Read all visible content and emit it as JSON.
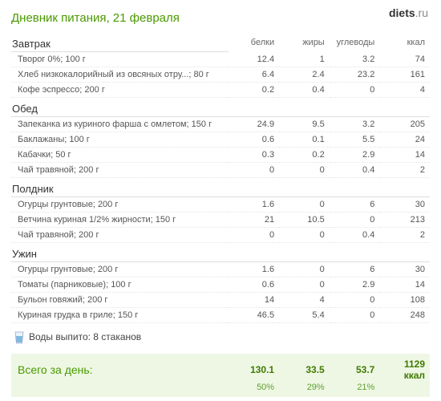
{
  "brand": {
    "bold": "diets",
    "suffix": ".ru"
  },
  "title": "Дневник питания, 21 февраля",
  "columns": {
    "protein": "белки",
    "fat": "жиры",
    "carbs": "углеводы",
    "kcal": "ккал"
  },
  "meals": [
    {
      "name": "Завтрак",
      "items": [
        {
          "name": "Творог 0%; 100 г",
          "p": "12.4",
          "f": "1",
          "c": "3.2",
          "k": "74"
        },
        {
          "name": "Хлеб низкокалорийный из овсяных отру...; 80 г",
          "p": "6.4",
          "f": "2.4",
          "c": "23.2",
          "k": "161"
        },
        {
          "name": "Кофе эспрессо; 200 г",
          "p": "0.2",
          "f": "0.4",
          "c": "0",
          "k": "4"
        }
      ]
    },
    {
      "name": "Обед",
      "items": [
        {
          "name": "Запеканка из куриного фарша с омлетом; 150 г",
          "p": "24.9",
          "f": "9.5",
          "c": "3.2",
          "k": "205"
        },
        {
          "name": "Баклажаны; 100 г",
          "p": "0.6",
          "f": "0.1",
          "c": "5.5",
          "k": "24"
        },
        {
          "name": "Кабачки; 50 г",
          "p": "0.3",
          "f": "0.2",
          "c": "2.9",
          "k": "14"
        },
        {
          "name": "Чай травяной; 200 г",
          "p": "0",
          "f": "0",
          "c": "0.4",
          "k": "2"
        }
      ]
    },
    {
      "name": "Полдник",
      "items": [
        {
          "name": "Огурцы грунтовые; 200 г",
          "p": "1.6",
          "f": "0",
          "c": "6",
          "k": "30"
        },
        {
          "name": "Ветчина куриная 1/2% жирности; 150 г",
          "p": "21",
          "f": "10.5",
          "c": "0",
          "k": "213"
        },
        {
          "name": "Чай травяной; 200 г",
          "p": "0",
          "f": "0",
          "c": "0.4",
          "k": "2"
        }
      ]
    },
    {
      "name": "Ужин",
      "items": [
        {
          "name": "Огурцы грунтовые; 200 г",
          "p": "1.6",
          "f": "0",
          "c": "6",
          "k": "30"
        },
        {
          "name": "Томаты (парниковые); 100 г",
          "p": "0.6",
          "f": "0",
          "c": "2.9",
          "k": "14"
        },
        {
          "name": "Бульон говяжий; 200 г",
          "p": "14",
          "f": "4",
          "c": "0",
          "k": "108"
        },
        {
          "name": "Куриная грудка в гриле; 150 г",
          "p": "46.5",
          "f": "5.4",
          "c": "0",
          "k": "248"
        }
      ]
    }
  ],
  "water": {
    "label": "Воды выпито: 8 стаканов"
  },
  "totals": {
    "label": "Всего за день:",
    "p": "130.1",
    "f": "33.5",
    "c": "53.7",
    "k": "1129 ккал",
    "p_pct": "50%",
    "f_pct": "29%",
    "c_pct": "21%"
  },
  "colors": {
    "accent": "#4a9a00",
    "totals_bg": "#eef7e4"
  }
}
